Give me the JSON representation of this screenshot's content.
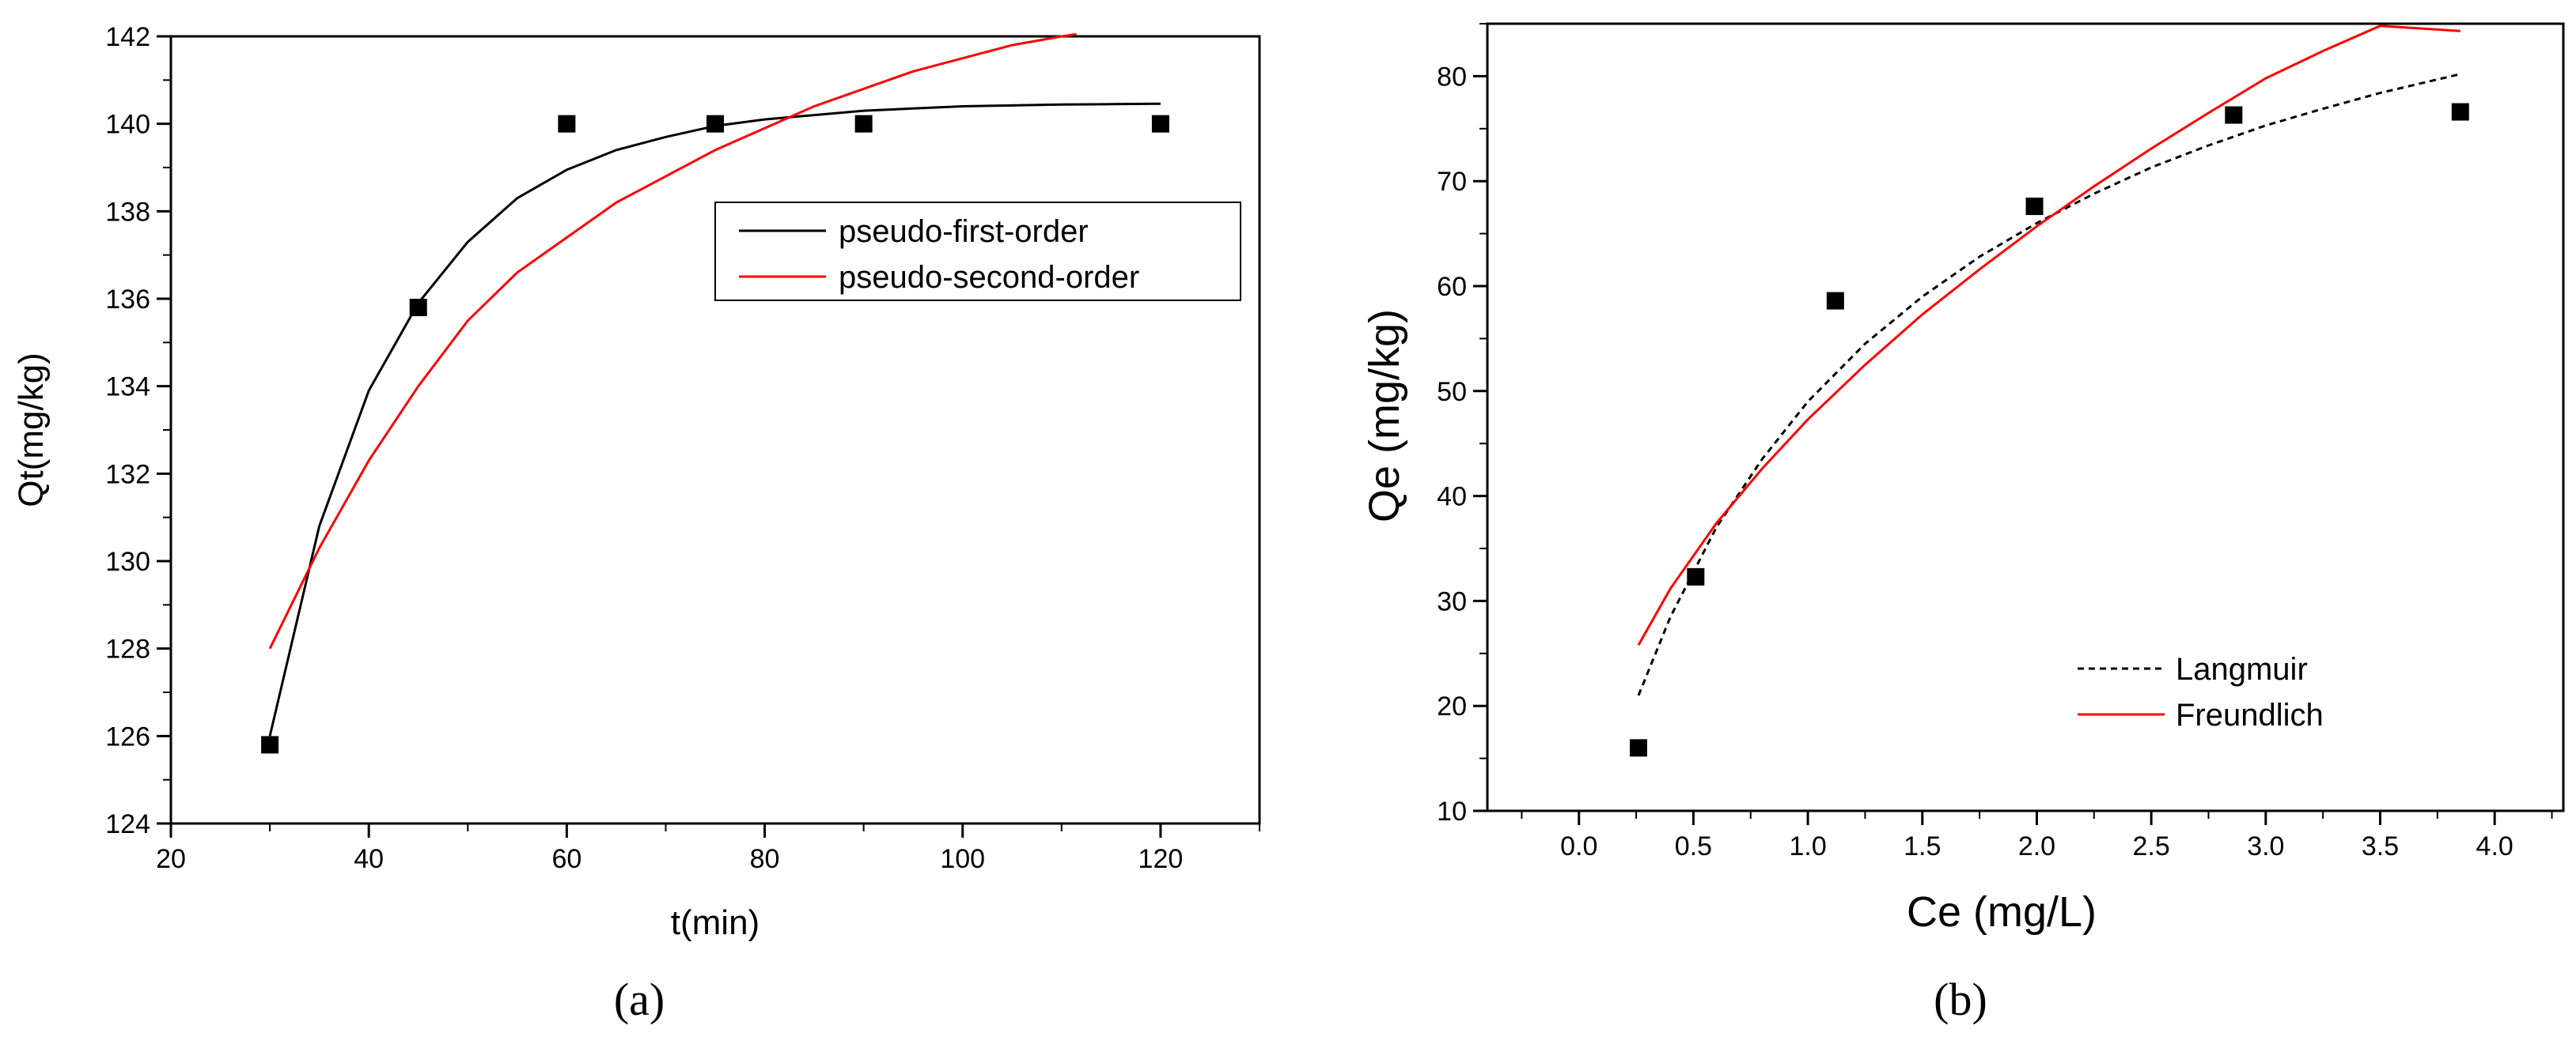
{
  "chart_data": [
    {
      "type": "scatter",
      "panel_label": "(a)",
      "xlabel": "t(min)",
      "ylabel": "Qt(mg/kg)",
      "xlim": [
        20,
        130
      ],
      "ylim": [
        124,
        142
      ],
      "xticks": [
        "20",
        "40",
        "60",
        "80",
        "100",
        "120"
      ],
      "yticks": [
        "124",
        "126",
        "128",
        "130",
        "132",
        "134",
        "136",
        "138",
        "140",
        "142"
      ],
      "points": {
        "x": [
          30,
          45,
          60,
          75,
          90,
          120
        ],
        "y": [
          125.8,
          135.8,
          140.0,
          140.0,
          140.0,
          140.0
        ]
      },
      "series": [
        {
          "name": "pseudo-first-order",
          "color": "#000000",
          "x": [
            30,
            35,
            40,
            45,
            50,
            55,
            60,
            65,
            70,
            75,
            80,
            85,
            90,
            95,
            100,
            105,
            110,
            115,
            120
          ],
          "y": [
            126.0,
            130.8,
            133.9,
            135.9,
            137.3,
            138.3,
            138.95,
            139.4,
            139.7,
            139.95,
            140.1,
            140.2,
            140.3,
            140.35,
            140.4,
            140.42,
            140.44,
            140.45,
            140.46
          ]
        },
        {
          "name": "pseudo-second-order",
          "color": "#ff0000",
          "x": [
            30,
            35,
            40,
            45,
            50,
            55,
            60,
            65,
            70,
            75,
            80,
            85,
            90,
            95,
            100,
            105,
            110,
            111.5
          ],
          "y": [
            128.0,
            130.3,
            132.3,
            134.0,
            135.5,
            136.6,
            137.4,
            138.2,
            138.8,
            139.4,
            139.9,
            140.4,
            140.8,
            141.2,
            141.5,
            141.8,
            142.0,
            142.05
          ]
        }
      ],
      "legend": "top-right"
    },
    {
      "type": "scatter",
      "panel_label": "(b)",
      "xlabel": "Ce (mg/L)",
      "ylabel": "Qe (mg/kg)",
      "xlim": [
        -0.4,
        4.3
      ],
      "ylim": [
        10,
        85
      ],
      "xticks": [
        "0.0",
        "0.5",
        "1.0",
        "1.5",
        "2.0",
        "2.5",
        "3.0",
        "3.5",
        "4.0"
      ],
      "yticks": [
        "10",
        "20",
        "30",
        "40",
        "50",
        "60",
        "70",
        "80"
      ],
      "points": {
        "x": [
          0.26,
          0.51,
          1.12,
          1.99,
          2.86,
          3.85
        ],
        "y": [
          16.0,
          32.3,
          58.6,
          67.6,
          76.3,
          76.6
        ]
      },
      "series": [
        {
          "name": "Langmuir",
          "color": "#000000",
          "dash": "dashed",
          "x": [
            0.26,
            0.4,
            0.6,
            0.8,
            1.0,
            1.25,
            1.5,
            1.75,
            2.0,
            2.25,
            2.5,
            2.75,
            3.0,
            3.25,
            3.5,
            3.85
          ],
          "y": [
            21.0,
            28.5,
            37.0,
            43.5,
            49.0,
            54.5,
            59.0,
            62.8,
            66.0,
            68.8,
            71.3,
            73.4,
            75.3,
            76.9,
            78.4,
            80.2
          ]
        },
        {
          "name": "Freundlich",
          "color": "#ff0000",
          "x": [
            0.26,
            0.4,
            0.6,
            0.8,
            1.0,
            1.25,
            1.5,
            1.75,
            2.0,
            2.25,
            2.5,
            2.75,
            3.0,
            3.25,
            3.5,
            3.85
          ],
          "y": [
            25.8,
            31.2,
            37.4,
            42.6,
            47.3,
            52.5,
            57.3,
            61.6,
            65.7,
            69.5,
            73.1,
            76.5,
            79.8,
            82.4,
            84.8,
            84.3
          ]
        }
      ],
      "legend": "bottom-right"
    }
  ]
}
